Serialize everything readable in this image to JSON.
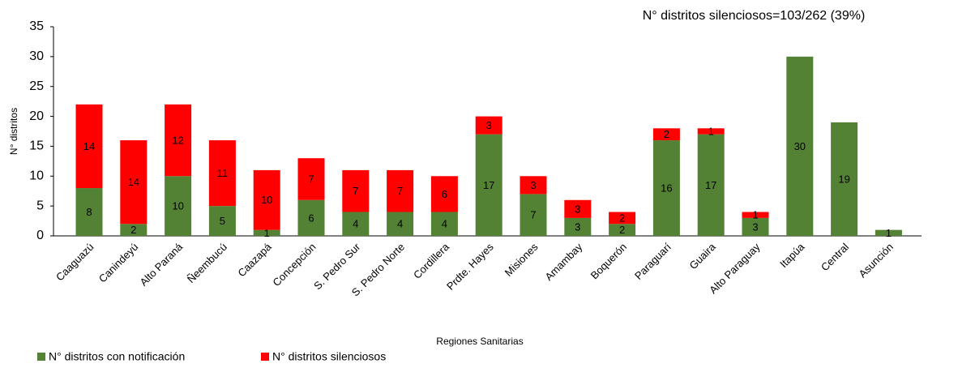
{
  "chart_data": {
    "type": "stacked_bar",
    "annotation": "N° distritos silenciosos=103/262 (39%)",
    "x_label": "Regiones Sanitarias",
    "y_label": "N° distritos",
    "categories": [
      "Caaguazú",
      "Canindeyú",
      "Alto Paraná",
      "Ñeembucú",
      "Caazapá",
      "Concepción",
      "S. Pedro Sur",
      "S. Pedro Norte",
      "Cordillera",
      "Prdte. Hayes",
      "Misiones",
      "Amambay",
      "Boquerón",
      "Paraguarí",
      "Guaira",
      "Alto Paraguay",
      "Itapúa",
      "Central",
      "Asunción"
    ],
    "series": [
      {
        "name": "N° distritos con notificación",
        "color": "#548235",
        "values": [
          8,
          2,
          10,
          5,
          1,
          6,
          4,
          4,
          4,
          17,
          7,
          3,
          2,
          16,
          17,
          3,
          30,
          19,
          1
        ]
      },
      {
        "name": "N° distritos silenciosos",
        "color": "#ff0000",
        "values": [
          14,
          14,
          12,
          11,
          10,
          7,
          7,
          7,
          6,
          3,
          3,
          3,
          2,
          2,
          1,
          1,
          null,
          null,
          null
        ]
      }
    ],
    "ylim": [
      0,
      35
    ],
    "yticks": [
      0,
      5,
      10,
      15,
      20,
      25,
      30,
      35
    ],
    "legend": "bottom-left"
  }
}
